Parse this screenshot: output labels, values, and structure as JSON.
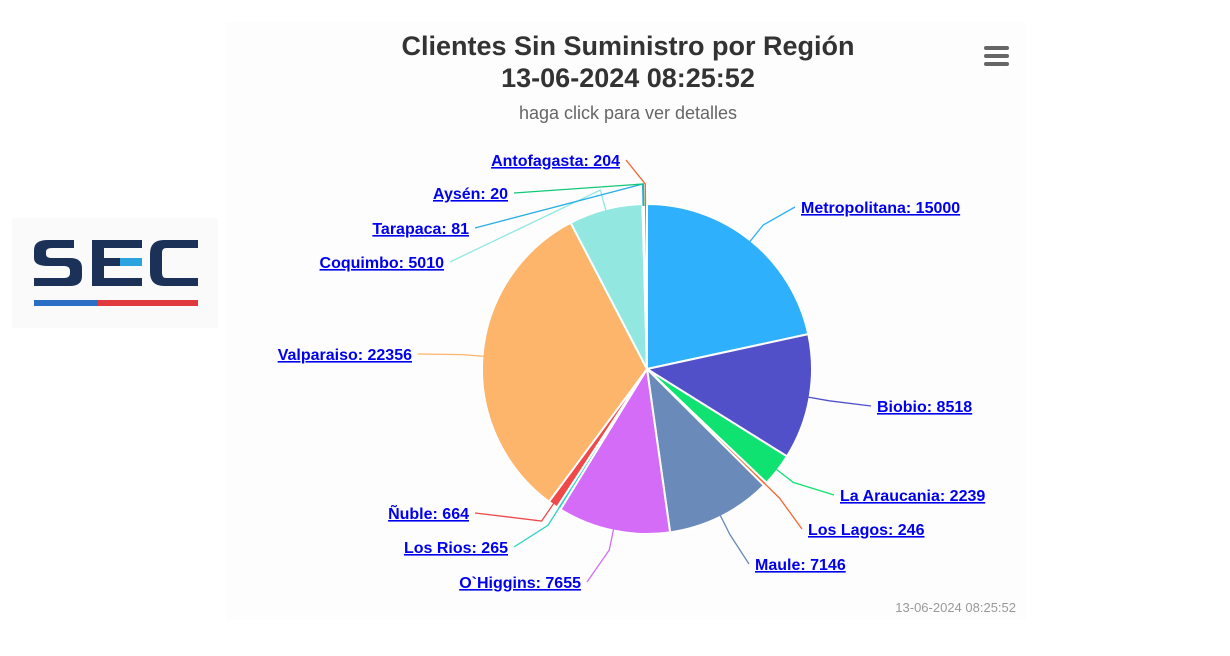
{
  "chart": {
    "title_line1": "Clientes Sin Suministro por Región",
    "title_line2": "13-06-2024 08:25:52",
    "subtitle": "haga click para ver detalles",
    "credits": "13-06-2024 08:25:52"
  },
  "logo": {
    "text": "SEC",
    "colors": {
      "navy": "#1b3157",
      "blue": "#2a6ec6",
      "red": "#e03a3e",
      "light_blue": "#2aa3df"
    }
  },
  "menu": {
    "icon": "hamburger-menu-icon"
  },
  "chart_data": {
    "type": "pie",
    "title": "Clientes Sin Suministro por Región 13-06-2024 08:25:52",
    "subtitle": "haga click para ver detalles",
    "slices": [
      {
        "name": "Metropolitana",
        "value": 15000,
        "label": "Metropolitana: 15000",
        "color": "#2eb0fc"
      },
      {
        "name": "Biobio",
        "value": 8518,
        "label": "Biobio: 8518",
        "color": "#5150c8"
      },
      {
        "name": "La Araucania",
        "value": 2239,
        "label": "La Araucania: 2239",
        "color": "#10e272"
      },
      {
        "name": "Los Lagos",
        "value": 246,
        "label": "Los Lagos: 246",
        "color": "#f66533"
      },
      {
        "name": "Maule",
        "value": 7146,
        "label": "Maule: 7146",
        "color": "#6a8ab9"
      },
      {
        "name": "O`Higgins",
        "value": 7655,
        "label": "O`Higgins: 7655",
        "color": "#d56cf8"
      },
      {
        "name": "Los Rios",
        "value": 265,
        "label": "Los Rios: 265",
        "color": "#2ed1c2"
      },
      {
        "name": "Ñuble",
        "value": 664,
        "label": "Ñuble: 664",
        "color": "#f04949"
      },
      {
        "name": "Valparaiso",
        "value": 22356,
        "label": "Valparaiso: 22356",
        "color": "#fdb46b"
      },
      {
        "name": "Coquimbo",
        "value": 5010,
        "label": "Coquimbo: 5010",
        "color": "#92e8e1"
      },
      {
        "name": "Tarapaca",
        "value": 81,
        "label": "Tarapaca: 81",
        "color": "#2aaee6"
      },
      {
        "name": "Aysén",
        "value": 20,
        "label": "Aysén: 20",
        "color": "#10c876"
      },
      {
        "name": "Antofagasta",
        "value": 204,
        "label": "Antofagasta: 204",
        "color": "#f66533"
      }
    ]
  }
}
